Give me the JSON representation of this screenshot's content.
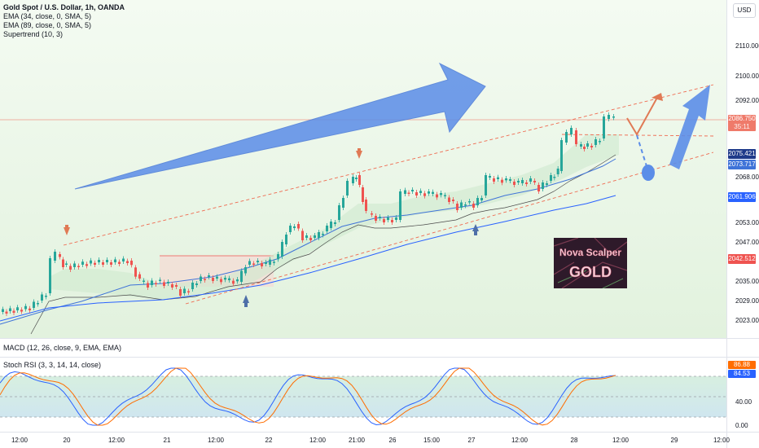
{
  "legend": {
    "title": "Gold Spot / U.S. Dollar, 1h, OANDA",
    "ema34": "EMA (34, close, 0, SMA, 5)",
    "ema89": "EMA (89, close, 0, SMA, 5)",
    "supertrend": "Supertrend (10, 3)",
    "macd": "MACD (12, 26, close, 9, EMA, EMA)",
    "stoch": "Stoch RSI (3, 3, 14, 14, close)"
  },
  "currency": "USD",
  "price_axis": [
    "2110.000",
    "2100.000",
    "2092.000",
    "2068.000",
    "2053.000",
    "2047.000",
    "2035.000",
    "2029.000",
    "2023.000"
  ],
  "price_tags": {
    "last_price": "2086.750",
    "countdown": "35:11",
    "ema_fast": "2075.421",
    "ema_mid": "2073.717",
    "ema_slow": "2061.906",
    "supertrend": "2042.512"
  },
  "rsi_axis": [
    "40.00",
    "0.00"
  ],
  "rsi_tags": {
    "k": "86.88",
    "d": "84.53"
  },
  "time_axis": [
    "12:00",
    "20",
    "12:00",
    "21",
    "12:00",
    "22",
    "12:00",
    "21:00",
    "26",
    "15:00",
    "27",
    "12:00",
    "28",
    "12:00",
    "29",
    "12:00"
  ],
  "logo": {
    "line1": "Nova Scalper",
    "line2": "GOLD"
  },
  "colors": {
    "bull": "#26a69a",
    "bear": "#ef5350",
    "arrow_blue": "#5b8de8",
    "arrow_red": "#e07a55",
    "ema_blue": "#3f73d8"
  }
}
